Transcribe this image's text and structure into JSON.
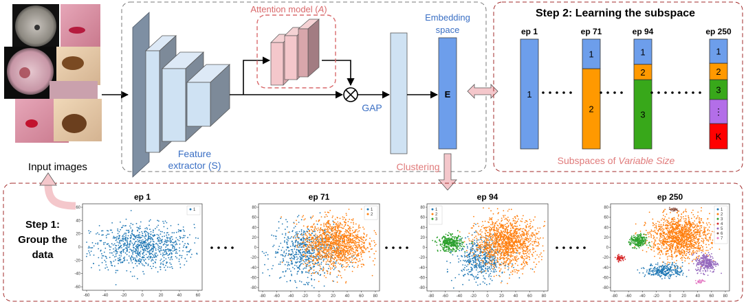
{
  "input_images_label": "Input images",
  "feature_extractor": {
    "line1": "Feature",
    "line2": "extractor (S)"
  },
  "attention_model": {
    "prefix": "Attention model (",
    "symbol": "A",
    "suffix": ")"
  },
  "gap_label": "GAP",
  "embedding_space": {
    "line1": "Embedding",
    "line2": "space"
  },
  "embedding_block_label": "E",
  "clustering_label": "Clustering",
  "step2": {
    "title": "Step 2: Learning the subspace",
    "footer_prefix": "Subspaces of ",
    "footer_emphasis": "Variable Size",
    "bars": [
      {
        "epoch": "ep 1",
        "segments": [
          {
            "label": "1",
            "color": "#6d9eeb",
            "fraction": 1.0
          }
        ]
      },
      {
        "epoch": "ep 71",
        "segments": [
          {
            "label": "1",
            "color": "#6d9eeb",
            "fraction": 0.27
          },
          {
            "label": "2",
            "color": "#ff9900",
            "fraction": 0.73
          }
        ]
      },
      {
        "epoch": "ep 94",
        "segments": [
          {
            "label": "1",
            "color": "#6d9eeb",
            "fraction": 0.23
          },
          {
            "label": "2",
            "color": "#ff9900",
            "fraction": 0.14
          },
          {
            "label": "3",
            "color": "#38a81a",
            "fraction": 0.63
          }
        ]
      },
      {
        "epoch": "ep 250",
        "segments": [
          {
            "label": "1",
            "color": "#6d9eeb",
            "fraction": 0.22
          },
          {
            "label": "2",
            "color": "#ff9900",
            "fraction": 0.15
          },
          {
            "label": "3",
            "color": "#38a81a",
            "fraction": 0.18
          },
          {
            "label": "⋮",
            "color": "#b36ee8",
            "fraction": 0.22
          },
          {
            "label": "K",
            "color": "#ff0000",
            "fraction": 0.23
          }
        ]
      }
    ]
  },
  "step1": {
    "title_lines": [
      "Step 1:",
      "Group the",
      "data"
    ],
    "plots": [
      {
        "title": "ep 1",
        "legend": [
          "1"
        ],
        "x_ticks": [
          "-60",
          "-40",
          "-20",
          "0",
          "20",
          "40",
          "60"
        ],
        "y_ticks": [
          "60",
          "40",
          "20",
          "0",
          "-20",
          "-40",
          "-60"
        ]
      },
      {
        "title": "ep 71",
        "legend": [
          "1",
          "2"
        ],
        "x_ticks": [
          "-80",
          "-60",
          "-40",
          "-20",
          "0",
          "20",
          "40",
          "60",
          "80"
        ],
        "y_ticks": [
          "80",
          "60",
          "40",
          "20",
          "0",
          "-20",
          "-40",
          "-60",
          "-80"
        ]
      },
      {
        "title": "ep 94",
        "legend": [
          "1",
          "2",
          "3"
        ],
        "x_ticks": [
          "-80",
          "-60",
          "-40",
          "-20",
          "0",
          "20",
          "40",
          "60",
          "80"
        ],
        "y_ticks": [
          "80",
          "60",
          "40",
          "20",
          "0",
          "-20",
          "-40",
          "-60",
          "-80"
        ]
      },
      {
        "title": "ep 250",
        "legend": [
          "1",
          "2",
          "3",
          "4",
          "5",
          "6",
          "7"
        ],
        "x_ticks": [
          "-80",
          "-60",
          "-40",
          "-20",
          "0",
          "20",
          "40",
          "60",
          "80"
        ],
        "y_ticks": [
          "80",
          "60",
          "40",
          "20",
          "0",
          "-20",
          "-40",
          "-60",
          "-80"
        ]
      }
    ]
  },
  "colors": {
    "blue": "#1f77b4",
    "orange": "#ff7f0e",
    "green": "#2ca02c",
    "red": "#d62728",
    "purple": "#9467bd",
    "pink": "#e377c2",
    "brown": "#8c564b",
    "dashed_dark": "#777777",
    "dashed_red": "#a22a2a",
    "attention_text": "#d9696b",
    "feature_text": "#3a6fc4",
    "cluster_text": "#e07a7a",
    "footer_text": "#e07a7a"
  }
}
